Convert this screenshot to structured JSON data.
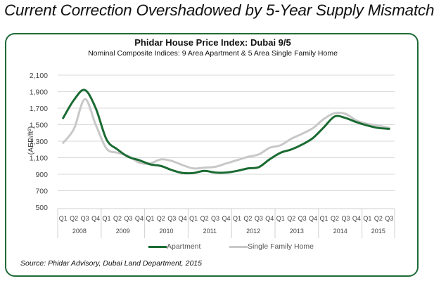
{
  "headline": "Current Correction Overshadowed by 5-Year Supply Mismatch",
  "source": "Source: Phidar Advisory, Dubai Land Department, 2015",
  "colors": {
    "frame": "#1e6b37",
    "apartment": "#1a6b32",
    "single_family": "#c8c8c8",
    "grid": "#d9d9d9"
  },
  "chart_data": {
    "type": "line",
    "title": "Phidar House Price Index: Dubai 9/5",
    "subtitle": "Nominal Composite Indices: 9 Area Apartment & 5 Area Single Family Home",
    "ylabel": "(AED/ft²)",
    "xlabel": "",
    "ylim": [
      500,
      2100
    ],
    "yticks": [
      "2,100",
      "1,900",
      "1,700",
      "1,500",
      "1,300",
      "1,100",
      "900",
      "700",
      "500"
    ],
    "ytick_values": [
      2100,
      1900,
      1700,
      1500,
      1300,
      1100,
      900,
      700,
      500
    ],
    "grid": true,
    "legend_position": "bottom",
    "years": [
      "2008",
      "2009",
      "2010",
      "2011",
      "2012",
      "2013",
      "2014",
      "2015"
    ],
    "quarters": [
      "Q1",
      "Q2",
      "Q3",
      "Q4",
      "Q1",
      "Q2",
      "Q3",
      "Q4",
      "Q1",
      "Q2",
      "Q3",
      "Q4",
      "Q1",
      "Q2",
      "Q3",
      "Q4",
      "Q1",
      "Q2",
      "Q3",
      "Q4",
      "Q1",
      "Q2",
      "Q3",
      "Q4",
      "Q1",
      "Q2",
      "Q3",
      "Q4",
      "Q1",
      "Q2",
      "Q3"
    ],
    "series": [
      {
        "name": "Apartment",
        "values": [
          1580,
          1800,
          1920,
          1700,
          1320,
          1200,
          1110,
          1070,
          1020,
          1000,
          950,
          915,
          915,
          940,
          920,
          920,
          940,
          970,
          985,
          1080,
          1160,
          1200,
          1260,
          1340,
          1470,
          1600,
          1580,
          1530,
          1490,
          1460,
          1450
        ]
      },
      {
        "name": "Single Family Home",
        "values": [
          1280,
          1450,
          1810,
          1500,
          1210,
          1160,
          1120,
          1040,
          1030,
          1080,
          1060,
          1010,
          970,
          980,
          990,
          1030,
          1070,
          1110,
          1140,
          1220,
          1250,
          1330,
          1390,
          1460,
          1570,
          1640,
          1630,
          1550,
          1510,
          1490,
          1460
        ]
      }
    ]
  }
}
